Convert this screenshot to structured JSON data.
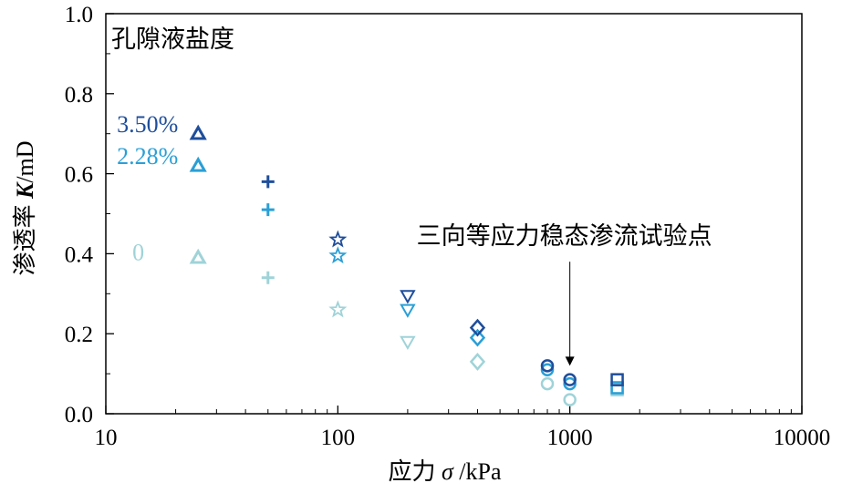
{
  "chart_data": {
    "type": "scatter",
    "x_scale": "log",
    "xlabel_prefix": "应力 ",
    "xlabel_symbol": "σ",
    "xlabel_suffix": " /kPa",
    "ylabel_prefix": "渗透率 ",
    "ylabel_symbol": "K",
    "ylabel_suffix": "/mD",
    "xlim": [
      10,
      10000
    ],
    "ylim": [
      0.0,
      1.0
    ],
    "x_ticks": [
      10,
      100,
      1000,
      10000
    ],
    "x_tick_labels": [
      "10",
      "100",
      "1000",
      "10000"
    ],
    "y_ticks": [
      0.0,
      0.2,
      0.4,
      0.6,
      0.8,
      1.0
    ],
    "y_tick_labels": [
      "0.0",
      "0.2",
      "0.4",
      "0.6",
      "0.8",
      "1.0"
    ],
    "legend_title": "孔隙液盐度",
    "series": [
      {
        "name": "3.50%",
        "color": "#1f4e9b",
        "label_x": 12,
        "label_y": 0.72,
        "points": [
          {
            "x": 25,
            "y": 0.7,
            "marker": "triangle-up"
          },
          {
            "x": 50,
            "y": 0.58,
            "marker": "plus"
          },
          {
            "x": 100,
            "y": 0.435,
            "marker": "star"
          },
          {
            "x": 200,
            "y": 0.295,
            "marker": "triangle-down"
          },
          {
            "x": 400,
            "y": 0.215,
            "marker": "diamond"
          },
          {
            "x": 800,
            "y": 0.12,
            "marker": "circle"
          },
          {
            "x": 1000,
            "y": 0.085,
            "marker": "circle"
          },
          {
            "x": 1600,
            "y": 0.085,
            "marker": "square"
          }
        ]
      },
      {
        "name": "2.28%",
        "color": "#2a9fd6",
        "label_x": 12,
        "label_y": 0.64,
        "points": [
          {
            "x": 25,
            "y": 0.62,
            "marker": "triangle-up"
          },
          {
            "x": 50,
            "y": 0.51,
            "marker": "plus"
          },
          {
            "x": 100,
            "y": 0.395,
            "marker": "star"
          },
          {
            "x": 200,
            "y": 0.26,
            "marker": "triangle-down"
          },
          {
            "x": 400,
            "y": 0.19,
            "marker": "diamond"
          },
          {
            "x": 800,
            "y": 0.11,
            "marker": "circle"
          },
          {
            "x": 1000,
            "y": 0.075,
            "marker": "circle"
          },
          {
            "x": 1600,
            "y": 0.065,
            "marker": "square"
          }
        ]
      },
      {
        "name": "0",
        "color": "#9fd3d8",
        "label_x": 14,
        "label_y": 0.4,
        "points": [
          {
            "x": 25,
            "y": 0.39,
            "marker": "triangle-up"
          },
          {
            "x": 50,
            "y": 0.34,
            "marker": "plus"
          },
          {
            "x": 100,
            "y": 0.26,
            "marker": "star"
          },
          {
            "x": 200,
            "y": 0.18,
            "marker": "triangle-down"
          },
          {
            "x": 400,
            "y": 0.13,
            "marker": "diamond"
          },
          {
            "x": 800,
            "y": 0.075,
            "marker": "circle"
          },
          {
            "x": 1000,
            "y": 0.035,
            "marker": "circle"
          },
          {
            "x": 1600,
            "y": 0.06,
            "marker": "square"
          }
        ]
      }
    ],
    "annotation": {
      "text": "三向等应力稳态渗流试验点",
      "target_x": 1000,
      "target_y": 0.12
    },
    "grid": false,
    "legend_position": "top-left"
  }
}
